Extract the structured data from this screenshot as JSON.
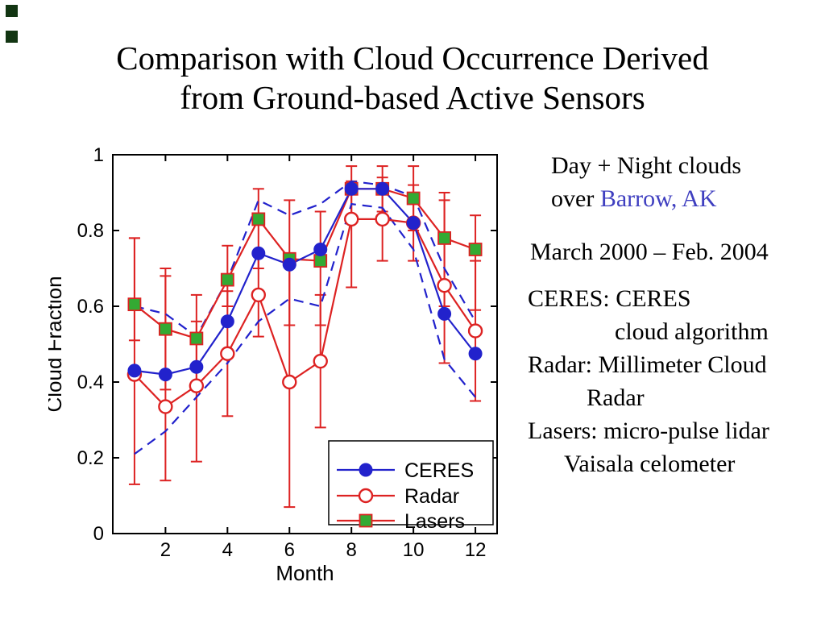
{
  "slide": {
    "title_line1": "Comparison with Cloud Occurrence Derived",
    "title_line2": "from Ground-based Active Sensors"
  },
  "right_panel": {
    "caption_line1": "Day + Night clouds",
    "caption_line2_prefix": "over ",
    "location": "Barrow, AK",
    "location_color": "#3f3fc0",
    "period": "March 2000 – Feb. 2004",
    "desc_lines": [
      "CERES: CERES",
      "cloud algorithm",
      "Radar: Millimeter Cloud",
      "Radar",
      "Lasers: micro-pulse lidar",
      "Vaisala celometer"
    ]
  },
  "chart_data": {
    "type": "line",
    "title": "",
    "xlabel": "Month",
    "ylabel": "Cloud Fraction",
    "xlim": [
      0.3,
      12.7
    ],
    "ylim": [
      0,
      1
    ],
    "xticks": [
      2,
      4,
      6,
      8,
      10,
      12
    ],
    "yticks": [
      0,
      0.2,
      0.4,
      0.6,
      0.8,
      1
    ],
    "x": [
      1,
      2,
      3,
      4,
      5,
      6,
      7,
      8,
      9,
      10,
      11,
      12
    ],
    "grid": false,
    "legend_position": "lower-right-inside",
    "legend_order": [
      "CERES",
      "Radar",
      "Lasers"
    ],
    "series": [
      {
        "name": "CERES upper uncertainty",
        "color": "#2222cc",
        "line": "dashed",
        "marker": "none",
        "in_legend": false,
        "values": [
          0.6,
          0.58,
          0.52,
          0.67,
          0.88,
          0.84,
          0.87,
          0.93,
          0.92,
          0.89,
          0.7,
          0.56
        ]
      },
      {
        "name": "CERES lower uncertainty",
        "color": "#2222cc",
        "line": "dashed",
        "marker": "none",
        "in_legend": false,
        "values": [
          0.21,
          0.27,
          0.36,
          0.45,
          0.56,
          0.62,
          0.6,
          0.87,
          0.86,
          0.75,
          0.46,
          0.36
        ]
      },
      {
        "name": "Radar",
        "color": "#dd2222",
        "line": "solid",
        "marker": "open-circle",
        "in_legend": true,
        "values": [
          0.42,
          0.335,
          0.39,
          0.475,
          0.63,
          0.4,
          0.455,
          0.83,
          0.83,
          0.82,
          0.655,
          0.535
        ],
        "err_lo": [
          0.13,
          0.14,
          0.19,
          0.31,
          0.52,
          0.07,
          0.28,
          0.65,
          0.72,
          0.72,
          0.45,
          0.35
        ],
        "err_hi": [
          0.78,
          0.68,
          0.56,
          0.64,
          0.74,
          0.72,
          0.63,
          0.93,
          0.94,
          0.92,
          0.88,
          0.72
        ]
      },
      {
        "name": "Lasers",
        "color": "#dd2222",
        "marker_fill": "#33aa33",
        "line": "solid",
        "marker": "filled-square",
        "in_legend": true,
        "values": [
          0.605,
          0.54,
          0.515,
          0.67,
          0.83,
          0.725,
          0.72,
          0.91,
          0.91,
          0.885,
          0.78,
          0.75
        ],
        "err_lo": [
          0.51,
          0.38,
          0.4,
          0.6,
          0.7,
          0.55,
          0.55,
          0.84,
          0.85,
          0.8,
          0.6,
          0.59
        ],
        "err_hi": [
          0.78,
          0.7,
          0.63,
          0.76,
          0.91,
          0.88,
          0.85,
          0.97,
          0.97,
          0.97,
          0.9,
          0.84
        ]
      },
      {
        "name": "CERES",
        "color": "#2222cc",
        "marker_fill": "#2222cc",
        "line": "solid",
        "marker": "filled-circle",
        "in_legend": true,
        "values": [
          0.43,
          0.42,
          0.44,
          0.56,
          0.74,
          0.71,
          0.75,
          0.91,
          0.91,
          0.82,
          0.58,
          0.475
        ]
      }
    ]
  }
}
